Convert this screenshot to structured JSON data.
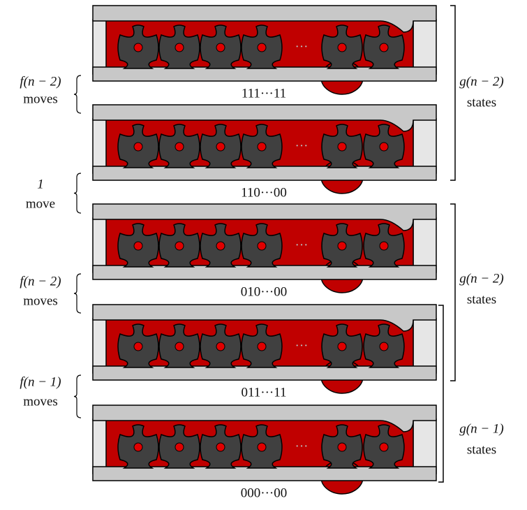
{
  "panels": [
    {
      "caption": "111···11"
    },
    {
      "caption": "110···00"
    },
    {
      "caption": "010···00"
    },
    {
      "caption": "011···11"
    },
    {
      "caption": "000···00"
    }
  ],
  "left_labels": [
    {
      "top": "f(n − 2)",
      "bottom": "moves"
    },
    {
      "top": "1",
      "bottom": "move"
    },
    {
      "top": "f(n − 2)",
      "bottom": "moves"
    },
    {
      "top": "f(n − 1)",
      "bottom": "moves"
    }
  ],
  "right_labels": [
    {
      "top": "g(n − 2)",
      "bottom": "states"
    },
    {
      "top": "g(n − 2)",
      "bottom": "states"
    },
    {
      "top": "g(n − 1)",
      "bottom": "states"
    }
  ],
  "ellipsis": "···"
}
